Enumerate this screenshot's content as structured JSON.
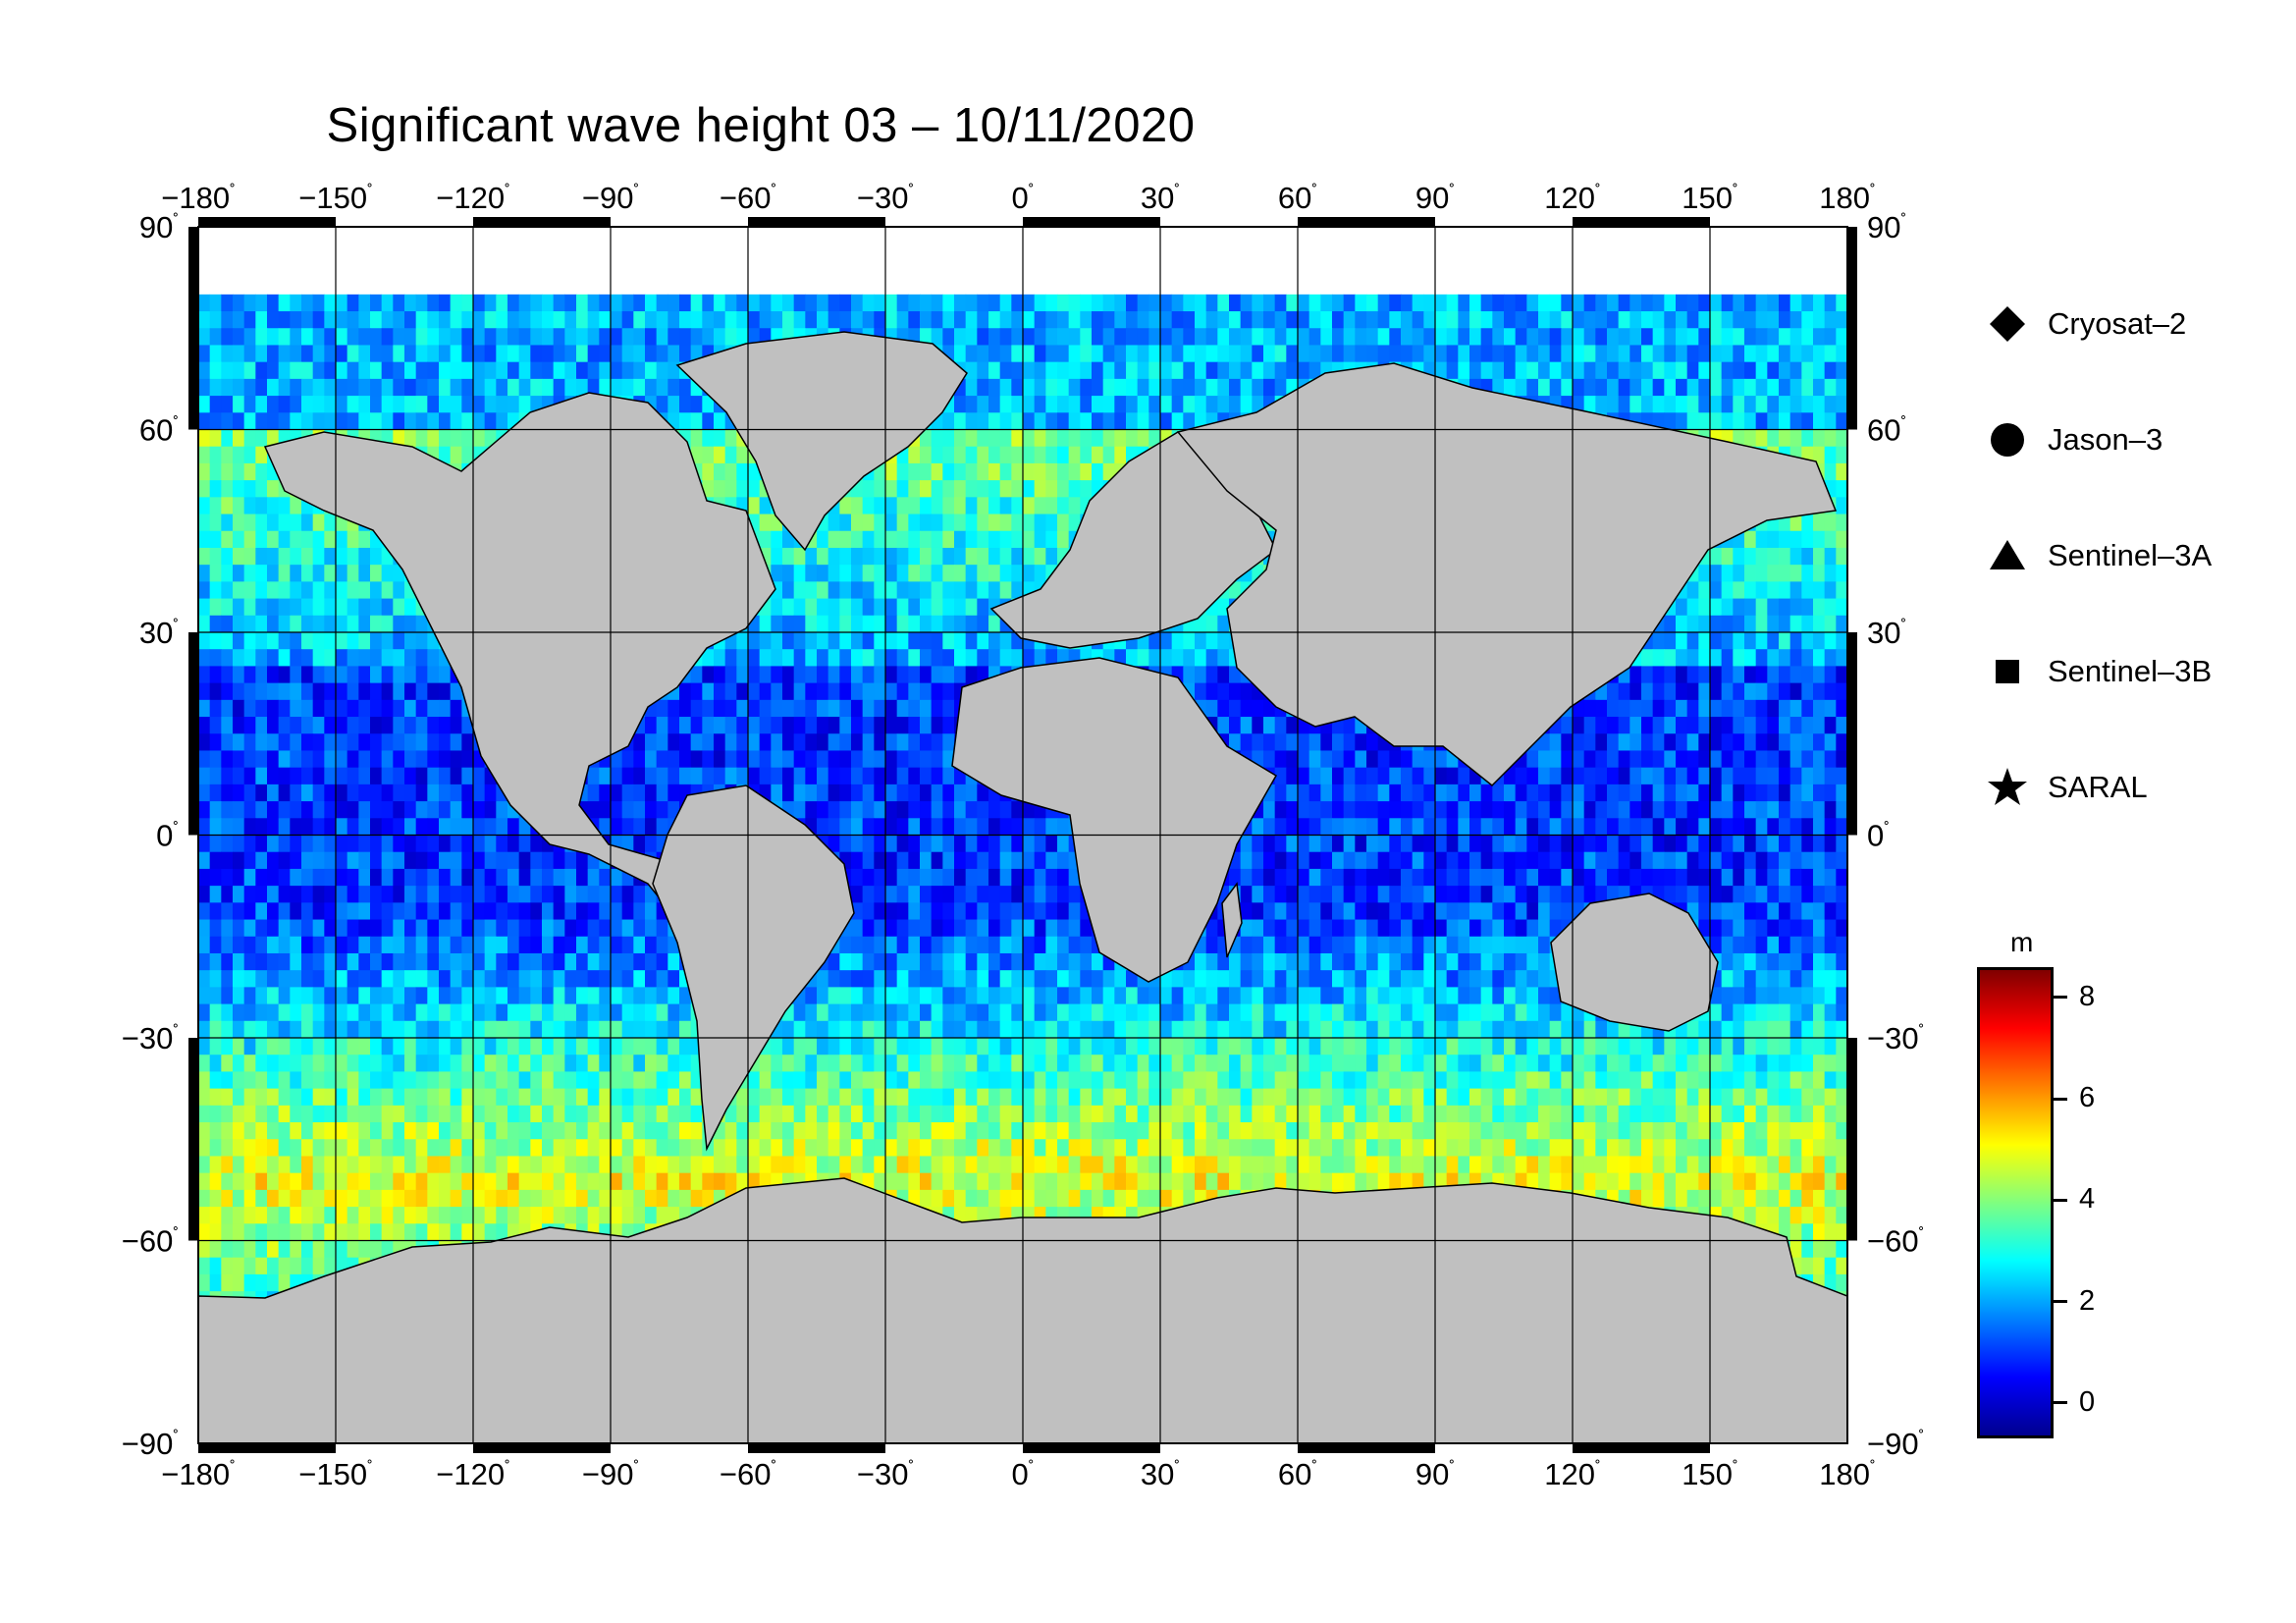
{
  "title": "Significant wave height 03 – 10/11/2020",
  "map": {
    "projection": "equirectangular",
    "lon_range": [
      -180,
      180
    ],
    "lat_range": [
      -90,
      90
    ],
    "lon_ticks": [
      "−180",
      "−150",
      "−120",
      "−90",
      "−60",
      "−30",
      "0",
      "30",
      "60",
      "90",
      "120",
      "150",
      "180"
    ],
    "lat_ticks": [
      "90",
      "60",
      "30",
      "0",
      "−30",
      "−60",
      "−90"
    ],
    "degree_symbol": "˚",
    "colors": {
      "land": "#c0c0c0",
      "no_data": "#ffffff",
      "grid": "#000000"
    }
  },
  "legend": [
    {
      "label": "Cryosat–2",
      "symbol": "diamond-icon"
    },
    {
      "label": "Jason–3",
      "symbol": "circle-icon"
    },
    {
      "label": "Sentinel–3A",
      "symbol": "triangle-icon"
    },
    {
      "label": "Sentinel–3B",
      "symbol": "square-icon"
    },
    {
      "label": "SARAL",
      "symbol": "star-icon"
    }
  ],
  "colorbar": {
    "unit": "m",
    "range": [
      -0.7,
      8.6
    ],
    "ticks": [
      "8",
      "6",
      "4",
      "2",
      "0"
    ],
    "colormap": "jet"
  }
}
